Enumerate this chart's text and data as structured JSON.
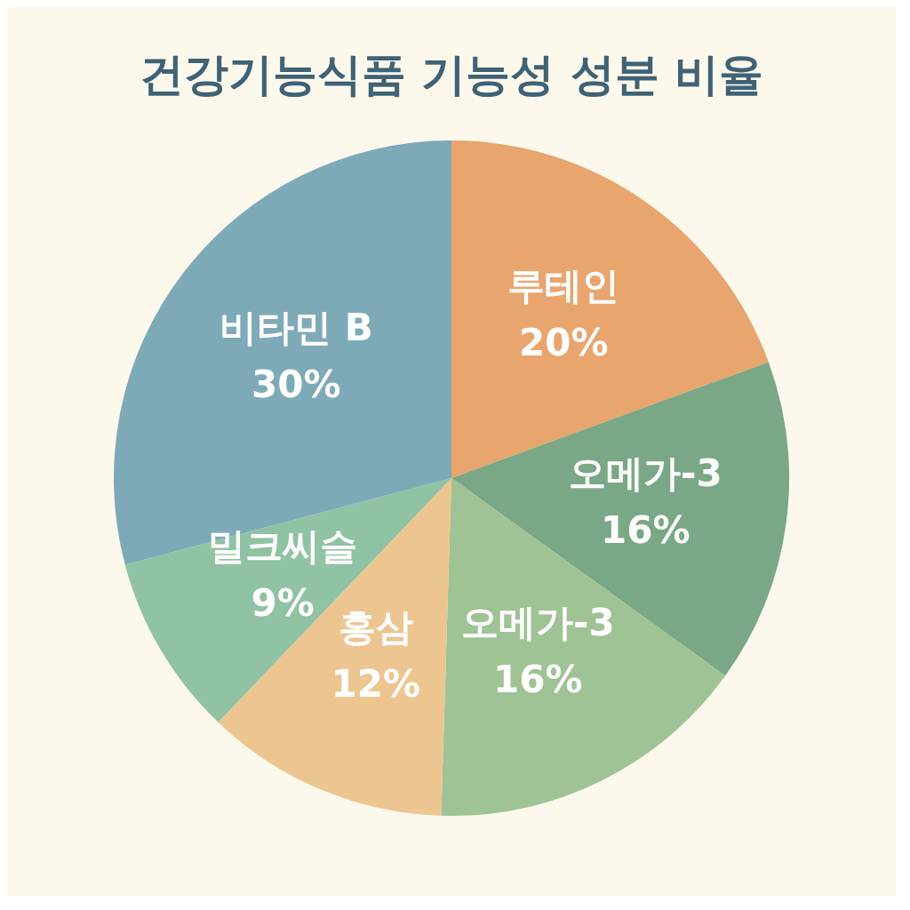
{
  "chart_data": {
    "type": "pie",
    "title": "건강기능식품 기능성 성분 비율",
    "categories": [
      "루테인",
      "오메가-3",
      "오메가-3",
      "홍삼",
      "밀크씨슬",
      "비타민 B"
    ],
    "values": [
      20,
      16,
      16,
      12,
      9,
      30
    ],
    "value_labels": [
      "20%",
      "16%",
      "16%",
      "12%",
      "9%",
      "30%"
    ],
    "colors": [
      "#e8a56e",
      "#7aa886",
      "#9fc394",
      "#ecc591",
      "#90c2a4",
      "#7eaab8"
    ],
    "legend": false
  }
}
